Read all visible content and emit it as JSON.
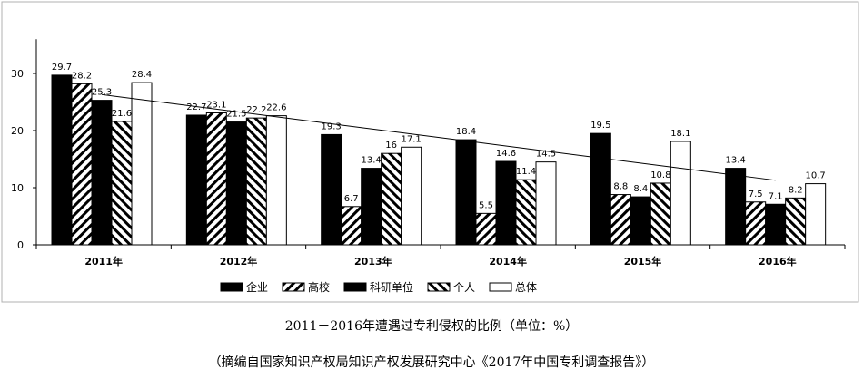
{
  "chart_data": {
    "type": "bar",
    "title": "2011－2016年遭遇过专利侵权的比例（单位：%）",
    "source": "（摘编自国家知识产权局知识产权发展研究中心《2017年中国专利调查报告》）",
    "categories": [
      "2011年",
      "2012年",
      "2013年",
      "2014年",
      "2015年",
      "2016年"
    ],
    "series": [
      {
        "name": "企业",
        "values": [
          29.7,
          22.7,
          19.3,
          18.4,
          19.5,
          13.4
        ],
        "pattern": "solid"
      },
      {
        "name": "高校",
        "values": [
          28.2,
          23.1,
          6.7,
          5.5,
          8.8,
          7.5
        ],
        "pattern": "hatch-forward"
      },
      {
        "name": "科研单位",
        "values": [
          25.3,
          21.5,
          13.4,
          14.6,
          8.4,
          7.1
        ],
        "pattern": "solid"
      },
      {
        "name": "个人",
        "values": [
          21.6,
          22.2,
          16,
          11.4,
          10.8,
          8.2
        ],
        "pattern": "hatch-back"
      },
      {
        "name": "总体",
        "values": [
          28.4,
          22.6,
          17.1,
          14.5,
          18.1,
          10.7
        ],
        "pattern": "empty"
      }
    ],
    "y_ticks": [
      "0",
      "10",
      "20",
      "30"
    ],
    "ylim": [
      0,
      36
    ],
    "trend_line": {
      "from": [
        0,
        26.3
      ],
      "to": [
        5,
        11.3
      ]
    },
    "legend_position": "bottom",
    "grid": false,
    "colors": {
      "bar": "#000000",
      "stroke": "#000000",
      "frame": "#b0b0b0",
      "fill_empty": "#ffffff"
    }
  }
}
